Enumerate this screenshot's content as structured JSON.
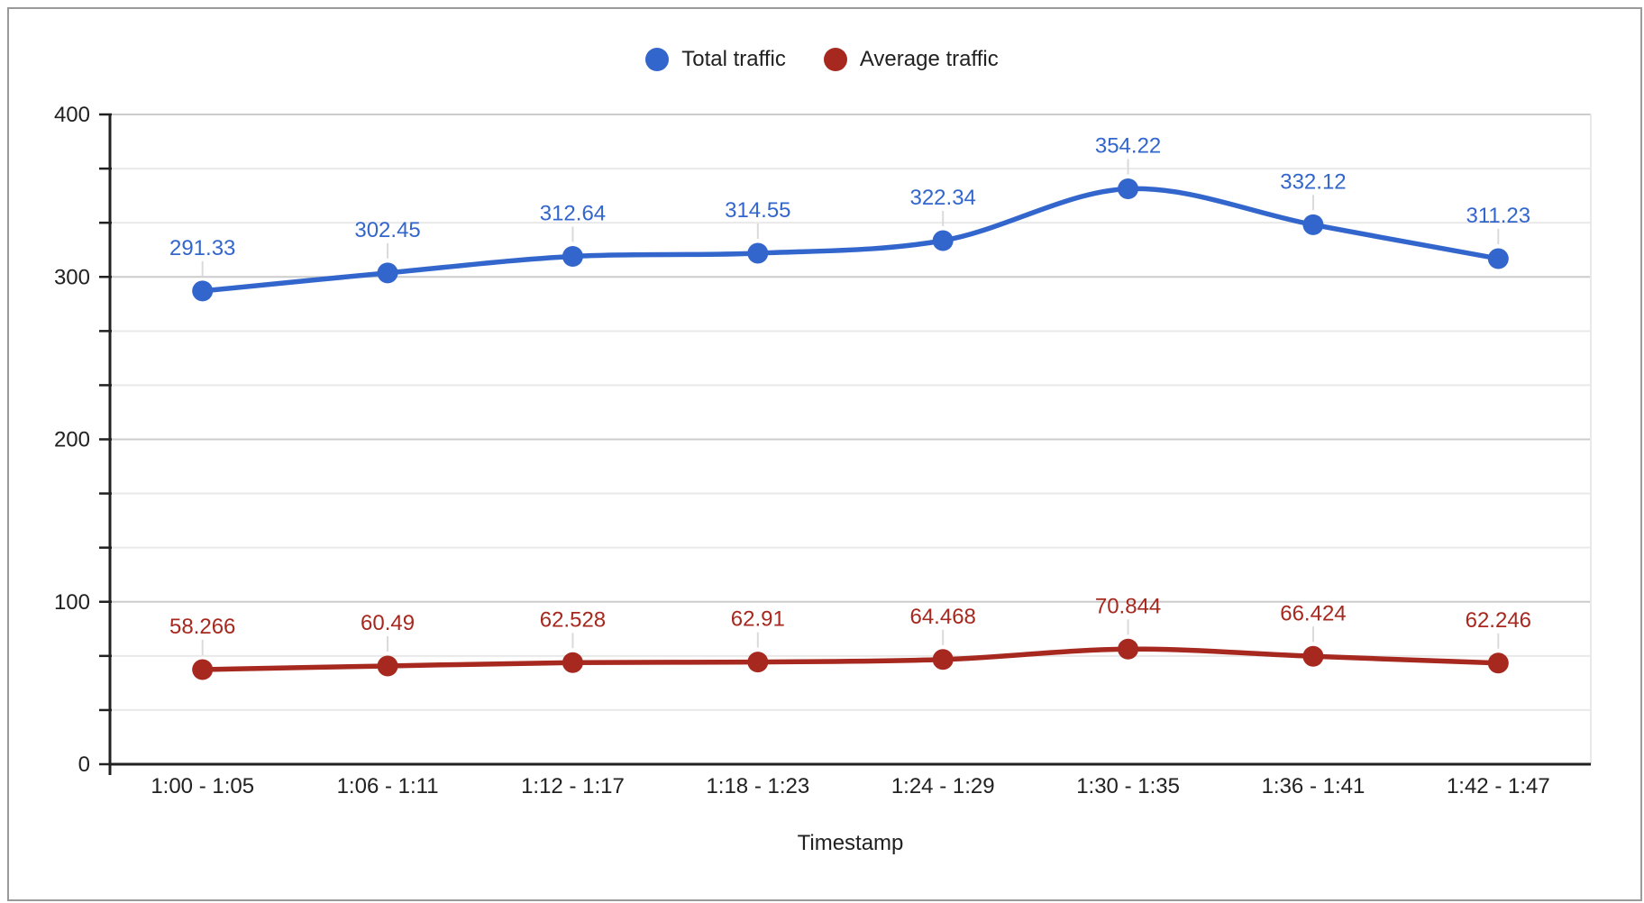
{
  "legend": {
    "items": [
      {
        "label": "Total traffic",
        "color": "#3366CC"
      },
      {
        "label": "Average traffic",
        "color": "#A6281E"
      }
    ]
  },
  "axes": {
    "x": {
      "title": "Timestamp"
    },
    "y": {
      "tick_labels": [
        "0",
        "100",
        "200",
        "300",
        "400"
      ],
      "min": 0,
      "max": 400,
      "minor_gridlines_between_major": 2
    }
  },
  "chart_data": {
    "type": "line",
    "title": "",
    "xlabel": "Timestamp",
    "ylabel": "",
    "ylim": [
      0,
      400
    ],
    "grid": true,
    "legend_position": "top",
    "smooth": true,
    "point_labels_shown": true,
    "categories": [
      "1:00 - 1:05",
      "1:06 - 1:11",
      "1:12 - 1:17",
      "1:18 - 1:23",
      "1:24 - 1:29",
      "1:30 - 1:35",
      "1:36 - 1:41",
      "1:42 - 1:47"
    ],
    "series": [
      {
        "name": "Total traffic",
        "color": "#3366CC",
        "values": [
          291.33,
          302.45,
          312.64,
          314.55,
          322.34,
          354.22,
          332.12,
          311.23
        ],
        "labels": [
          "291.33",
          "302.45",
          "312.64",
          "314.55",
          "322.34",
          "354.22",
          "332.12",
          "311.23"
        ]
      },
      {
        "name": "Average traffic",
        "color": "#A6281E",
        "values": [
          58.266,
          60.49,
          62.528,
          62.91,
          64.468,
          70.844,
          66.424,
          62.246
        ],
        "labels": [
          "58.266",
          "60.49",
          "62.528",
          "62.91",
          "64.468",
          "70.844",
          "66.424",
          "62.246"
        ]
      }
    ],
    "style": {
      "major_gridline_color": "#CCCCCC",
      "minor_gridline_color": "#E9E9E9",
      "axis_color": "#212121",
      "tick_label_color": "#212121",
      "label_stem_color": "#DADADA",
      "background": "#FFFFFF"
    }
  }
}
